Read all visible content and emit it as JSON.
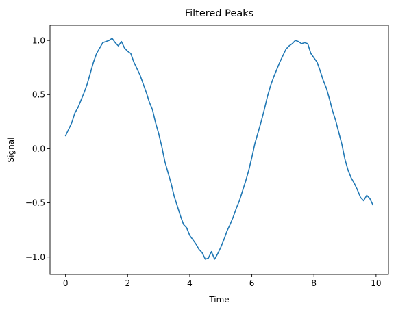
{
  "chart_data": {
    "type": "line",
    "title": "Filtered Peaks",
    "xlabel": "Time",
    "ylabel": "Signal",
    "xlim": [
      -0.5,
      10.4
    ],
    "ylim": [
      -1.16,
      1.14
    ],
    "grid": false,
    "x_ticks": [
      0,
      2,
      4,
      6,
      8,
      10
    ],
    "x_tick_labels": [
      "0",
      "2",
      "4",
      "6",
      "8",
      "10"
    ],
    "y_ticks": [
      -1.0,
      -0.5,
      0.0,
      0.5,
      1.0
    ],
    "y_tick_labels": [
      "−1.0",
      "−0.5",
      "0.0",
      "0.5",
      "1.0"
    ],
    "series": [
      {
        "color": "#1f77b4",
        "x": [
          0.0,
          0.1,
          0.2,
          0.3,
          0.4,
          0.5,
          0.6,
          0.7,
          0.8,
          0.9,
          1.0,
          1.1,
          1.2,
          1.3,
          1.4,
          1.5,
          1.6,
          1.7,
          1.8,
          1.9,
          2.0,
          2.1,
          2.2,
          2.3,
          2.4,
          2.5,
          2.6,
          2.7,
          2.8,
          2.9,
          3.0,
          3.1,
          3.2,
          3.3,
          3.4,
          3.5,
          3.6,
          3.7,
          3.8,
          3.9,
          4.0,
          4.1,
          4.2,
          4.3,
          4.4,
          4.5,
          4.6,
          4.7,
          4.8,
          4.9,
          5.0,
          5.1,
          5.2,
          5.3,
          5.4,
          5.5,
          5.6,
          5.7,
          5.8,
          5.9,
          6.0,
          6.1,
          6.2,
          6.3,
          6.4,
          6.5,
          6.6,
          6.7,
          6.8,
          6.9,
          7.0,
          7.1,
          7.2,
          7.3,
          7.4,
          7.5,
          7.6,
          7.7,
          7.8,
          7.9,
          8.0,
          8.1,
          8.2,
          8.3,
          8.4,
          8.5,
          8.6,
          8.7,
          8.8,
          8.9,
          9.0,
          9.1,
          9.2,
          9.3,
          9.4,
          9.5,
          9.6,
          9.7,
          9.8,
          9.9
        ],
        "y": [
          0.12,
          0.18,
          0.24,
          0.33,
          0.38,
          0.45,
          0.52,
          0.6,
          0.7,
          0.8,
          0.88,
          0.93,
          0.98,
          0.99,
          1.0,
          1.02,
          0.98,
          0.95,
          0.99,
          0.93,
          0.9,
          0.88,
          0.8,
          0.74,
          0.68,
          0.6,
          0.52,
          0.43,
          0.36,
          0.24,
          0.14,
          0.02,
          -0.12,
          -0.22,
          -0.32,
          -0.44,
          -0.53,
          -0.62,
          -0.7,
          -0.73,
          -0.8,
          -0.84,
          -0.88,
          -0.93,
          -0.96,
          -1.02,
          -1.01,
          -0.95,
          -1.02,
          -0.97,
          -0.91,
          -0.84,
          -0.76,
          -0.7,
          -0.63,
          -0.55,
          -0.48,
          -0.39,
          -0.3,
          -0.2,
          -0.08,
          0.05,
          0.15,
          0.25,
          0.36,
          0.48,
          0.58,
          0.66,
          0.73,
          0.8,
          0.86,
          0.92,
          0.95,
          0.97,
          1.0,
          0.99,
          0.97,
          0.98,
          0.97,
          0.88,
          0.84,
          0.8,
          0.72,
          0.63,
          0.56,
          0.46,
          0.35,
          0.26,
          0.15,
          0.04,
          -0.1,
          -0.2,
          -0.27,
          -0.32,
          -0.38,
          -0.45,
          -0.48,
          -0.43,
          -0.46,
          -0.52
        ]
      }
    ]
  }
}
